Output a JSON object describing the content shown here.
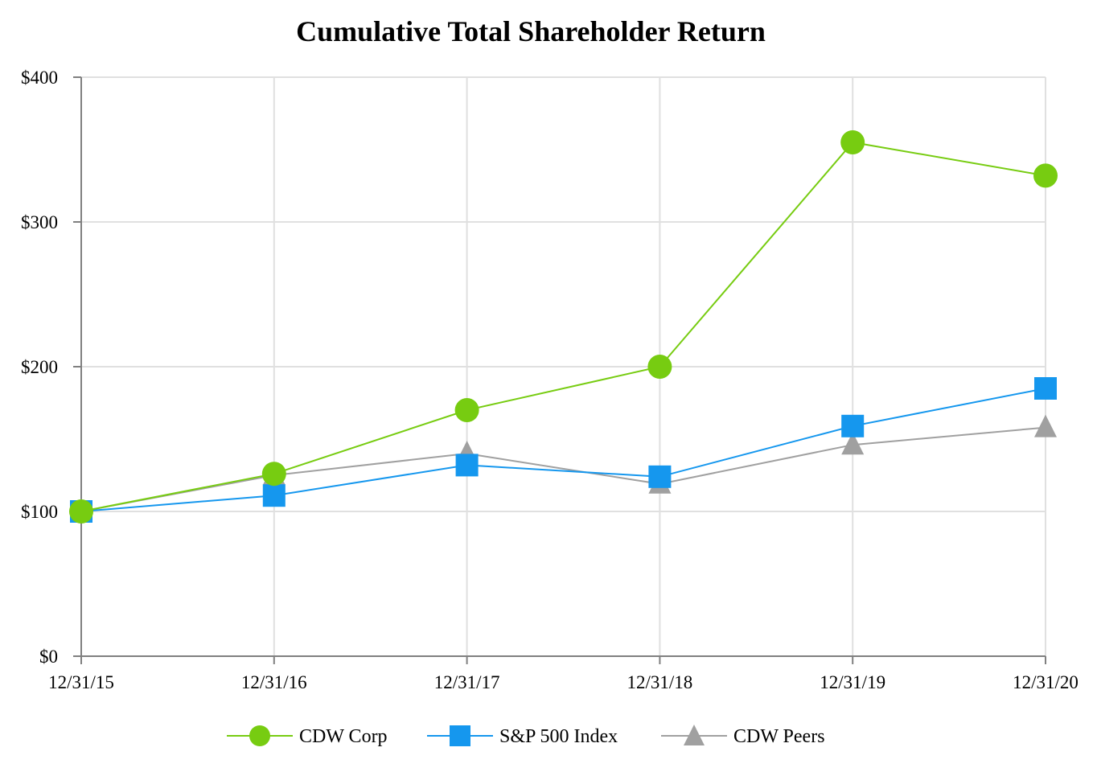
{
  "chart_data": {
    "type": "line",
    "title": "Cumulative Total Shareholder Return",
    "xlabel": "",
    "ylabel": "",
    "categories": [
      "12/31/15",
      "12/31/16",
      "12/31/17",
      "12/31/18",
      "12/31/19",
      "12/31/20"
    ],
    "ylim": [
      0,
      400
    ],
    "yticks": [
      0,
      100,
      200,
      300,
      400
    ],
    "ytick_labels": [
      "$0",
      "$100",
      "$200",
      "$300",
      "$400"
    ],
    "grid": true,
    "legend_position": "bottom-center",
    "series": [
      {
        "name": "CDW Corp",
        "color": "#77cc11",
        "marker": "circle",
        "values": [
          100,
          126,
          170,
          200,
          355,
          332
        ]
      },
      {
        "name": "S&P 500 Index",
        "color": "#1597ee",
        "marker": "square",
        "values": [
          100,
          111,
          132,
          124,
          159,
          185
        ]
      },
      {
        "name": "CDW Peers",
        "color": "#a0a0a0",
        "marker": "triangle",
        "values": [
          100,
          125,
          140,
          119,
          146,
          158
        ]
      }
    ]
  }
}
